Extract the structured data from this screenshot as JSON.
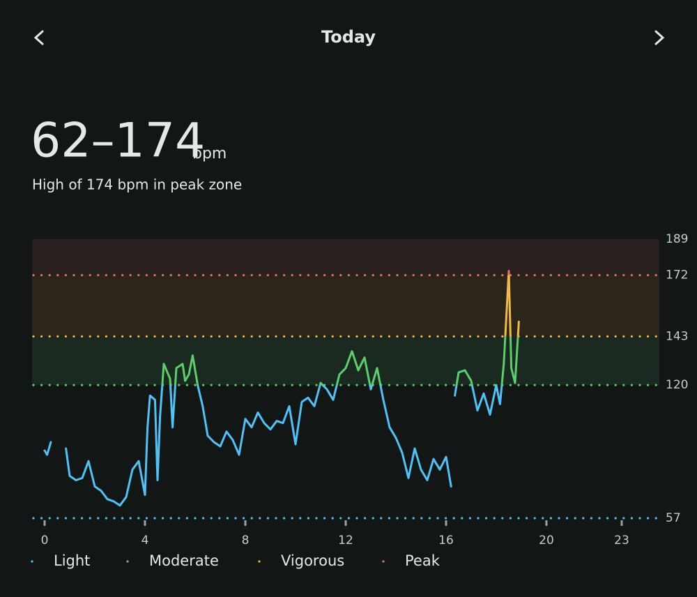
{
  "header": {
    "title": "Today",
    "value": "62–174",
    "unit": "bpm",
    "subtitle": "High of 174 bpm in peak zone"
  },
  "chart_data": {
    "type": "line",
    "zones": [
      {
        "name": "Light",
        "color": "#4fc3f7",
        "min": 57,
        "max": 120,
        "band": "#121716"
      },
      {
        "name": "Moderate",
        "color": "#5ccf6a",
        "min": 120,
        "max": 143,
        "band": "#1a2a21"
      },
      {
        "name": "Vigorous",
        "color": "#f2b84b",
        "min": 143,
        "max": 172,
        "band": "#2b2619"
      },
      {
        "name": "Peak",
        "color": "#e8706b",
        "min": 172,
        "max": 189,
        "band": "#2a2020"
      }
    ],
    "x": [
      0,
      0.1,
      0.25,
      0.55,
      0.85,
      1.0,
      1.25,
      1.5,
      1.75,
      2.0,
      2.25,
      2.5,
      2.75,
      3.0,
      3.25,
      3.5,
      3.75,
      4.0,
      4.1,
      4.2,
      4.4,
      4.5,
      4.6,
      4.75,
      5.0,
      5.1,
      5.25,
      5.5,
      5.6,
      5.75,
      5.9,
      6.1,
      6.3,
      6.5,
      6.75,
      7.0,
      7.25,
      7.5,
      7.75,
      8.0,
      8.25,
      8.5,
      8.75,
      9.0,
      9.25,
      9.5,
      9.75,
      10.0,
      10.25,
      10.5,
      10.75,
      11.0,
      11.25,
      11.5,
      11.75,
      12.0,
      12.25,
      12.5,
      12.75,
      13.0,
      13.25,
      13.5,
      13.75,
      14.0,
      14.25,
      14.5,
      14.75,
      15.0,
      15.25,
      15.5,
      15.75,
      16.0,
      16.2,
      16.27,
      16.35,
      16.5,
      16.75,
      17.0,
      17.25,
      17.5,
      17.75,
      18.0,
      18.15,
      18.3,
      18.5,
      18.6,
      18.75,
      18.9
    ],
    "values": [
      89,
      87,
      93,
      null,
      90,
      77,
      75,
      76,
      84,
      72,
      70,
      66,
      65,
      63,
      67,
      80,
      84,
      68,
      100,
      115,
      113,
      75,
      105,
      130,
      123,
      100,
      128,
      130,
      122,
      125,
      134,
      120,
      110,
      96,
      93,
      91,
      98,
      94,
      87,
      104,
      100,
      107,
      102,
      99,
      103,
      102,
      110,
      92,
      112,
      114,
      110,
      121,
      118,
      113,
      125,
      128,
      136,
      127,
      133,
      118,
      128,
      113,
      100,
      95,
      88,
      76,
      90,
      80,
      75,
      85,
      80,
      86,
      72,
      null,
      115,
      126,
      127,
      122,
      108,
      116,
      106,
      120,
      111,
      130,
      174,
      128,
      121,
      150
    ],
    "xlim": [
      -0.5,
      24.5
    ],
    "xticks": [
      0,
      4,
      8,
      12,
      16,
      20,
      23
    ],
    "ylim": [
      57,
      189
    ],
    "yticks": [
      57,
      120,
      143,
      172,
      189
    ]
  }
}
